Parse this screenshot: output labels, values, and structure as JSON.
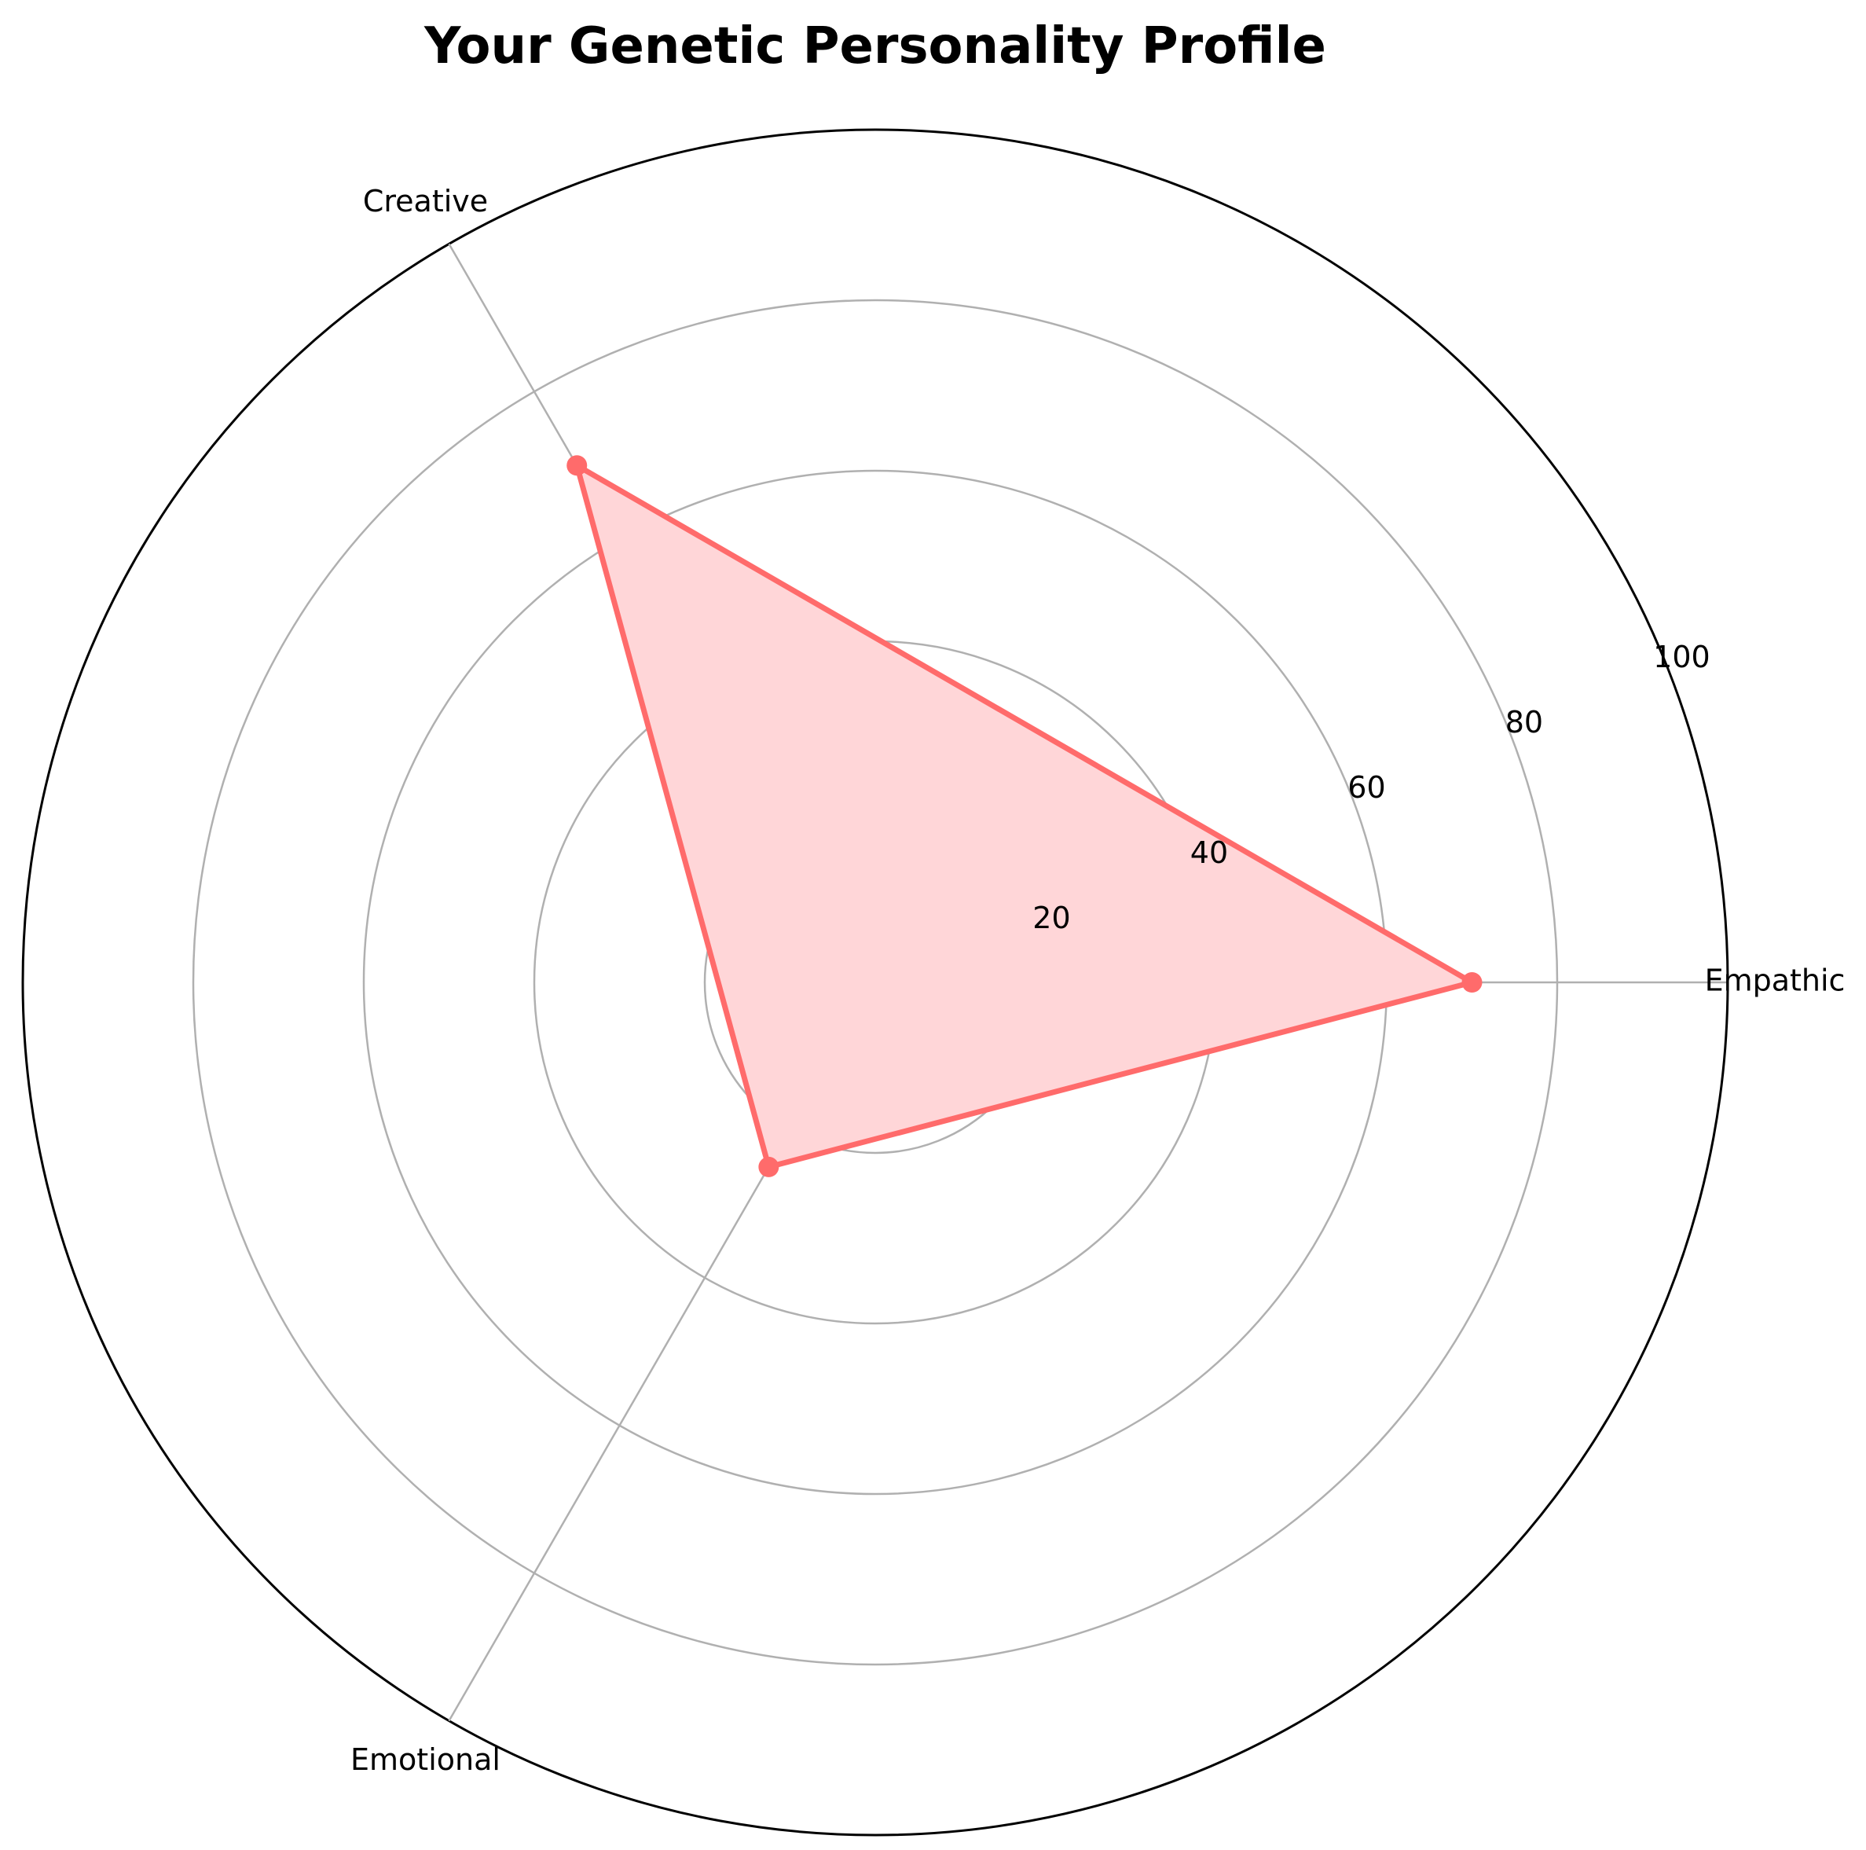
{
  "chart_data": {
    "type": "radar",
    "title": "Your Genetic Personality Profile",
    "categories": [
      "Empathic",
      "Creative",
      "Emotional"
    ],
    "series": [
      {
        "values": [
          70,
          70,
          25
        ],
        "color": "#ff6b6b",
        "fill_color": "#ffd6d8"
      }
    ],
    "rlim": [
      0,
      100
    ],
    "r_ticks": [
      "20",
      "40",
      "60",
      "80",
      "100"
    ],
    "r_tick_values": [
      20,
      40,
      60,
      80,
      100
    ],
    "grid": true,
    "legend": "none"
  }
}
